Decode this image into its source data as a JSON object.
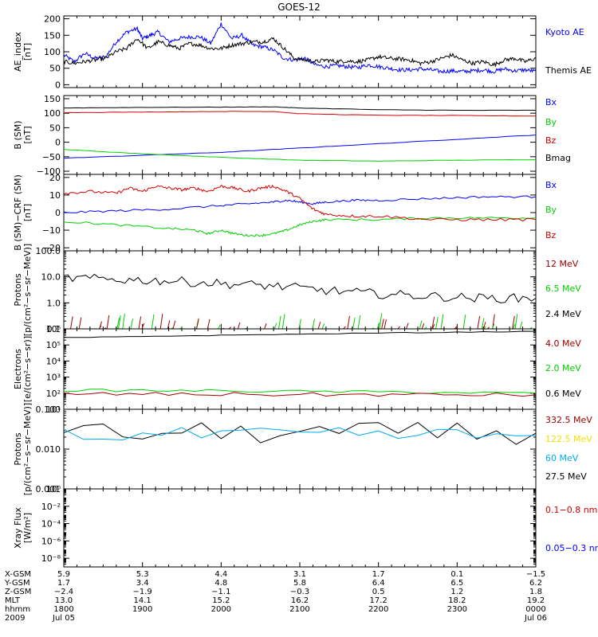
{
  "title": "GOES-12",
  "colors": {
    "blue": "#0000ff",
    "red": "#d40000",
    "green": "#00d000",
    "black": "#000000",
    "darkred": "#a00000",
    "yellow": "#f0e000",
    "cyan": "#00aaee"
  },
  "chart_data": [
    {
      "type": "line",
      "ylabel": [
        "AE_index",
        "[nT]"
      ],
      "yscale": "linear",
      "ylim": [
        0,
        200
      ],
      "yticks": [
        {
          "v": 0,
          "l": "0"
        },
        {
          "v": 50,
          "l": "50"
        },
        {
          "v": 100,
          "l": "100"
        },
        {
          "v": 150,
          "l": "150"
        },
        {
          "v": 200,
          "l": "200"
        }
      ],
      "legend": [
        {
          "label": "Kyoto AE",
          "color": "#0000ff"
        },
        {
          "label": "Themis AE",
          "color": "#000000"
        }
      ],
      "series": [
        {
          "name": "Kyoto AE",
          "color": "#0000ff",
          "x": [
            0,
            4,
            8,
            12,
            16,
            20,
            24,
            28,
            30,
            33,
            36,
            40,
            44,
            48,
            52,
            56,
            60,
            64,
            68,
            72,
            76,
            80,
            84,
            88,
            92,
            96,
            100,
            104,
            108,
            112,
            116,
            120,
            124,
            128,
            132,
            136,
            140,
            144,
            148,
            152,
            156,
            160,
            164,
            168,
            172,
            176,
            180
          ],
          "y": [
            90,
            70,
            95,
            80,
            85,
            130,
            160,
            170,
            140,
            150,
            160,
            130,
            140,
            145,
            145,
            125,
            185,
            140,
            150,
            120,
            115,
            105,
            80,
            75,
            80,
            60,
            55,
            58,
            55,
            52,
            60,
            55,
            50,
            45,
            45,
            48,
            45,
            40,
            42,
            40,
            42,
            45,
            40,
            48,
            42,
            45,
            40
          ]
        },
        {
          "name": "Themis AE",
          "color": "#000000",
          "x": [
            0,
            4,
            8,
            12,
            16,
            20,
            24,
            28,
            32,
            36,
            40,
            44,
            48,
            52,
            56,
            60,
            64,
            68,
            72,
            76,
            80,
            84,
            88,
            92,
            96,
            100,
            104,
            108,
            112,
            116,
            120,
            124,
            128,
            132,
            136,
            140,
            144,
            148,
            152,
            156,
            160,
            164,
            168,
            172,
            176,
            180
          ],
          "y": [
            70,
            65,
            70,
            75,
            80,
            100,
            110,
            140,
            110,
            130,
            120,
            110,
            125,
            120,
            110,
            110,
            120,
            125,
            130,
            130,
            140,
            110,
            80,
            75,
            70,
            75,
            70,
            72,
            70,
            75,
            85,
            80,
            78,
            75,
            65,
            70,
            80,
            90,
            75,
            65,
            70,
            60,
            75,
            80,
            70,
            80
          ]
        }
      ]
    },
    {
      "type": "line",
      "ylabel": [
        "B (SM)",
        "[nT]"
      ],
      "yscale": "linear",
      "ylim": [
        -100,
        150
      ],
      "yticks": [
        {
          "v": -100,
          "l": "−100"
        },
        {
          "v": -50,
          "l": "−50"
        },
        {
          "v": 0,
          "l": "0"
        },
        {
          "v": 50,
          "l": "50"
        },
        {
          "v": 100,
          "l": "100"
        },
        {
          "v": 150,
          "l": "150"
        }
      ],
      "legend": [
        {
          "label": "Bx",
          "color": "#0000ff"
        },
        {
          "label": "By",
          "color": "#00d000"
        },
        {
          "label": "Bz",
          "color": "#d40000"
        },
        {
          "label": "Bmag",
          "color": "#000000"
        }
      ],
      "series": [
        {
          "name": "Bx",
          "color": "#0000ff",
          "x": [
            0,
            30,
            60,
            90,
            120,
            150,
            180
          ],
          "y": [
            -55,
            -45,
            -35,
            -20,
            -5,
            10,
            25
          ]
        },
        {
          "name": "By",
          "color": "#00d000",
          "x": [
            0,
            30,
            60,
            90,
            120,
            150,
            180
          ],
          "y": [
            -25,
            -40,
            -52,
            -62,
            -65,
            -62,
            -60
          ]
        },
        {
          "name": "Bz",
          "color": "#d40000",
          "x": [
            0,
            30,
            60,
            80,
            90,
            120,
            150,
            180
          ],
          "y": [
            102,
            104,
            106,
            106,
            98,
            93,
            92,
            90
          ]
        },
        {
          "name": "Bmag",
          "color": "#000000",
          "x": [
            0,
            30,
            60,
            80,
            90,
            120,
            150,
            180
          ],
          "y": [
            118,
            120,
            121,
            122,
            118,
            112,
            110,
            110
          ]
        }
      ]
    },
    {
      "type": "line",
      "ylabel": [
        "B (SM)−CRF (SM)",
        "[nT]"
      ],
      "yscale": "linear",
      "ylim": [
        -20,
        20
      ],
      "yticks": [
        {
          "v": -20,
          "l": "−20"
        },
        {
          "v": -10,
          "l": "−10"
        },
        {
          "v": 0,
          "l": "0"
        },
        {
          "v": 10,
          "l": "10"
        },
        {
          "v": 20,
          "l": "20"
        }
      ],
      "legend": [
        {
          "label": "Bx",
          "color": "#0000ff"
        },
        {
          "label": "By",
          "color": "#00d000"
        },
        {
          "label": "Bz",
          "color": "#d40000"
        }
      ],
      "series": [
        {
          "name": "Bx",
          "color": "#0000ff",
          "x": [
            0,
            20,
            40,
            60,
            70,
            80,
            85,
            90,
            95,
            100,
            110,
            120,
            140,
            160,
            180
          ],
          "y": [
            0,
            1,
            2,
            4,
            5,
            6,
            7,
            6,
            5,
            6,
            7,
            7,
            8,
            9,
            9
          ]
        },
        {
          "name": "By",
          "color": "#00d000",
          "x": [
            0,
            20,
            40,
            50,
            55,
            60,
            65,
            70,
            75,
            80,
            85,
            90,
            95,
            100,
            120,
            140,
            160,
            180
          ],
          "y": [
            -5,
            -7,
            -9,
            -10,
            -12,
            -10,
            -12,
            -13,
            -13,
            -12,
            -10,
            -7,
            -5,
            -4,
            -4,
            -3,
            -3,
            -3
          ]
        },
        {
          "name": "Bz",
          "color": "#d40000",
          "x": [
            0,
            10,
            20,
            25,
            30,
            35,
            40,
            45,
            50,
            55,
            60,
            65,
            70,
            75,
            80,
            85,
            90,
            95,
            100,
            110,
            120,
            140,
            160,
            180
          ],
          "y": [
            11,
            12,
            11,
            14,
            12,
            15,
            14,
            13,
            14,
            12,
            15,
            14,
            12,
            14,
            15,
            12,
            8,
            2,
            -1,
            -2,
            -2,
            -4,
            -4,
            -4
          ]
        }
      ]
    },
    {
      "type": "line",
      "ylabel": [
        "Protons",
        "[p/(cm²−s−sr−MeV)]"
      ],
      "yscale": "log",
      "ylim": [
        0.1,
        100
      ],
      "yticks": [
        {
          "v": 0.1,
          "l": "0.1"
        },
        {
          "v": 1,
          "l": "1.0"
        },
        {
          "v": 10,
          "l": "10.0"
        },
        {
          "v": 100,
          "l": "100.0"
        }
      ],
      "legend": [
        {
          "label": "12 MeV",
          "color": "#a00000"
        },
        {
          "label": "6.5 MeV",
          "color": "#00d000"
        },
        {
          "label": "2.4 MeV",
          "color": "#000000"
        }
      ],
      "series": [
        {
          "name": "2.4 MeV",
          "color": "#000000",
          "x": [
            0,
            20,
            40,
            60,
            80,
            100,
            120,
            140,
            160,
            180
          ],
          "y": [
            9,
            8,
            7,
            5.5,
            4.5,
            3,
            2.2,
            1.8,
            1.5,
            1.5
          ]
        }
      ]
    },
    {
      "type": "line",
      "ylabel": [
        "Electrons",
        "[e/(cm²−s−sr)]"
      ],
      "yscale": "log",
      "ylim": [
        10,
        1000000
      ],
      "yticks": [
        {
          "v": 10,
          "l": "10¹"
        },
        {
          "v": 100,
          "l": "10²"
        },
        {
          "v": 1000,
          "l": "10³"
        },
        {
          "v": 10000,
          "l": "10⁴"
        },
        {
          "v": 100000,
          "l": "10⁵"
        },
        {
          "v": 1000000,
          "l": "10⁶"
        }
      ],
      "legend": [
        {
          "label": "4.0 MeV",
          "color": "#a00000"
        },
        {
          "label": "2.0 MeV",
          "color": "#00d000"
        },
        {
          "label": "0.6 MeV",
          "color": "#000000"
        }
      ],
      "series": [
        {
          "name": "0.6 MeV",
          "color": "#000000",
          "x": [
            0,
            60,
            120,
            180
          ],
          "y": [
            280000,
            400000,
            550000,
            700000
          ]
        },
        {
          "name": "2.0 MeV",
          "color": "#00d000",
          "x": [
            0,
            60,
            120,
            180
          ],
          "y": [
            150,
            140,
            120,
            100
          ]
        },
        {
          "name": "4.0 MeV",
          "color": "#a00000",
          "x": [
            0,
            60,
            120,
            180
          ],
          "y": [
            90,
            85,
            80,
            80
          ]
        }
      ]
    },
    {
      "type": "line",
      "ylabel": [
        "Protons",
        "[p/(cm²−s−sr−MeV)]"
      ],
      "yscale": "log",
      "ylim": [
        0.001,
        0.1
      ],
      "yticks": [
        {
          "v": 0.001,
          "l": "0.001"
        },
        {
          "v": 0.01,
          "l": "0.010"
        },
        {
          "v": 0.1,
          "l": "0.100"
        }
      ],
      "legend": [
        {
          "label": "332.5 MeV",
          "color": "#a00000"
        },
        {
          "label": "122.5 MeV",
          "color": "#f0e000"
        },
        {
          "label": "60 MeV",
          "color": "#00aaee"
        },
        {
          "label": "27.5 MeV",
          "color": "#000000"
        }
      ],
      "series": [
        {
          "name": "27.5 MeV",
          "color": "#000000",
          "x": [
            0,
            90,
            180
          ],
          "y": [
            0.025,
            0.025,
            0.025
          ]
        },
        {
          "name": "60 MeV",
          "color": "#00aaee",
          "x": [
            0,
            90,
            180
          ],
          "y": [
            0.022,
            0.022,
            0.022
          ]
        }
      ]
    },
    {
      "type": "line",
      "ylabel": [
        "Xray Flux",
        "[W/m²]"
      ],
      "yscale": "log",
      "ylim": [
        1e-09,
        1
      ],
      "yticks": [
        {
          "v": 1e-08,
          "l": "10⁻⁸"
        },
        {
          "v": 1e-06,
          "l": "10⁻⁶"
        },
        {
          "v": 0.0001,
          "l": "10⁻⁴"
        },
        {
          "v": 0.01,
          "l": "10⁻²"
        },
        {
          "v": 1,
          "l": "10⁰"
        }
      ],
      "legend": [
        {
          "label": "0.1−0.8 nm",
          "color": "#d40000"
        },
        {
          "label": "0.05−0.3 nr",
          "color": "#0000ff"
        }
      ],
      "series": []
    }
  ],
  "xaxis": {
    "labels": [
      "X-GSM",
      "Y-GSM",
      "Z-GSM",
      "MLT",
      "hhmm",
      "2009"
    ],
    "ticks": [
      {
        "x": 0,
        "rows": [
          "5.9",
          "1.7",
          "−2.4",
          "13.0",
          "1800",
          "Jul 05"
        ]
      },
      {
        "x": 30,
        "rows": [
          "5.3",
          "3.4",
          "−1.9",
          "14.1",
          "1900",
          ""
        ]
      },
      {
        "x": 60,
        "rows": [
          "4.4",
          "4.8",
          "−1.1",
          "15.2",
          "2000",
          ""
        ]
      },
      {
        "x": 90,
        "rows": [
          "3.1",
          "5.8",
          "−0.3",
          "16.2",
          "2100",
          ""
        ]
      },
      {
        "x": 120,
        "rows": [
          "1.7",
          "6.4",
          "0.5",
          "17.2",
          "2200",
          ""
        ]
      },
      {
        "x": 150,
        "rows": [
          "0.1",
          "6.5",
          "1.2",
          "18.2",
          "2300",
          ""
        ]
      },
      {
        "x": 180,
        "rows": [
          "−1.5",
          "6.2",
          "1.8",
          "19.2",
          "0000",
          "Jul 06"
        ]
      }
    ]
  }
}
